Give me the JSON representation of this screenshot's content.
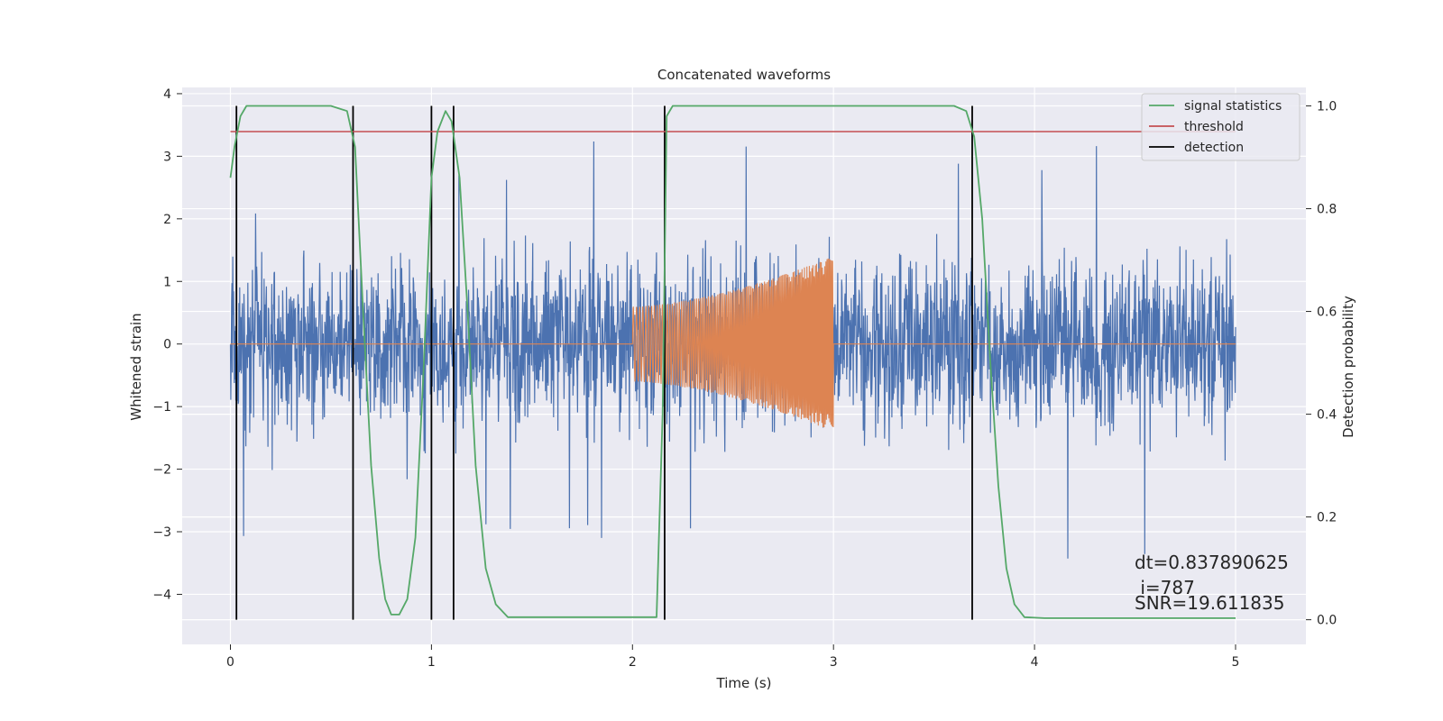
{
  "chart_data": {
    "type": "line",
    "title": "Concatenated waveforms",
    "xlabel": "Time (s)",
    "ylabel": "Whitened strain",
    "ylabel_right": "Detection probability",
    "xlim": [
      -0.24,
      5.35
    ],
    "ylim": [
      -4.8,
      4.1
    ],
    "ylim_right": [
      -0.048,
      1.036
    ],
    "x_ticks": [
      "0",
      "1",
      "2",
      "3",
      "4",
      "5"
    ],
    "x_tick_values": [
      0,
      1,
      2,
      3,
      4,
      5
    ],
    "y_ticks": [
      "4",
      "3",
      "2",
      "1",
      "0",
      "−1",
      "−2",
      "−3",
      "−4"
    ],
    "y_tick_values": [
      4,
      3,
      2,
      1,
      0,
      -1,
      -2,
      -3,
      -4
    ],
    "y_right_ticks": [
      "1.0",
      "0.8",
      "0.6",
      "0.4",
      "0.2",
      "0.0"
    ],
    "y_right_tick_values": [
      1.0,
      0.8,
      0.6,
      0.4,
      0.2,
      0.0
    ],
    "grid": true,
    "legend_position": "top-right",
    "legend": [
      {
        "label": "signal statistics",
        "color": "#55a868"
      },
      {
        "label": "threshold",
        "color": "#c44e52"
      },
      {
        "label": "detection",
        "color": "#000000"
      }
    ],
    "series": [
      {
        "name": "whitened strain",
        "axis": "left",
        "color": "#4c72b0",
        "description": "noise, t from 0 to 5 s, amplitude mostly within ±2, peaks to about ±3.7",
        "x_range": [
          0,
          5
        ],
        "typical_amplitude": 2.0,
        "peak_amplitude": 3.7
      },
      {
        "name": "injected signal",
        "axis": "left",
        "color": "#dd8452",
        "description": "chirp from 2 s to 3 s, amplitude 0.6 rising to 1.4",
        "x_range": [
          2,
          3
        ],
        "amplitude_start": 0.6,
        "amplitude_end": 1.4
      },
      {
        "name": "signal statistics",
        "axis": "right",
        "color": "#55a868",
        "x": [
          0,
          0.02,
          0.05,
          0.08,
          0.12,
          0.5,
          0.58,
          0.62,
          0.66,
          0.7,
          0.74,
          0.77,
          0.8,
          0.84,
          0.88,
          0.92,
          0.96,
          1.0,
          1.03,
          1.07,
          1.1,
          1.14,
          1.18,
          1.22,
          1.27,
          1.32,
          1.38,
          2.12,
          2.15,
          2.17,
          2.2,
          3.6,
          3.66,
          3.7,
          3.74,
          3.78,
          3.82,
          3.86,
          3.9,
          3.95,
          4.05,
          5.0
        ],
        "y": [
          0.86,
          0.92,
          0.98,
          1.0,
          1.0,
          1.0,
          0.99,
          0.92,
          0.6,
          0.3,
          0.12,
          0.04,
          0.01,
          0.01,
          0.04,
          0.16,
          0.48,
          0.86,
          0.95,
          0.99,
          0.97,
          0.86,
          0.6,
          0.3,
          0.1,
          0.03,
          0.005,
          0.005,
          0.4,
          0.98,
          1.0,
          1.0,
          0.99,
          0.94,
          0.78,
          0.5,
          0.26,
          0.1,
          0.03,
          0.005,
          0.003,
          0.003
        ]
      },
      {
        "name": "threshold",
        "axis": "right",
        "color": "#c44e52",
        "value": 0.95,
        "x_range": [
          0,
          5
        ]
      }
    ],
    "detections": [
      0.03,
      0.61,
      1.0,
      1.11,
      2.16,
      3.69
    ],
    "detection_y_range": [
      0,
      1.0
    ],
    "annotations": [
      "dt=0.837890625",
      " i=787",
      "SNR=19.611835"
    ]
  }
}
